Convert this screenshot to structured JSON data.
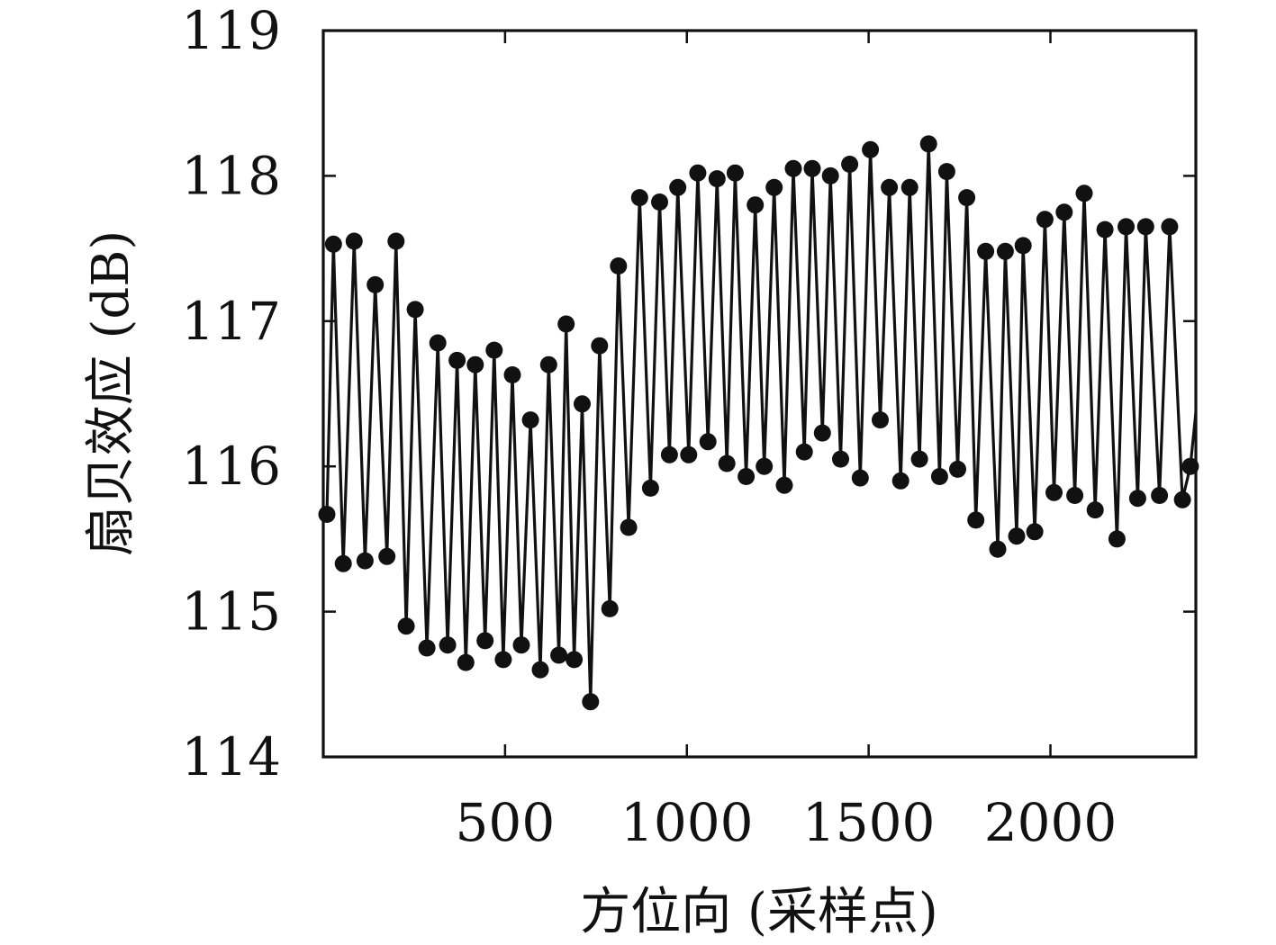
{
  "chart_data": {
    "type": "line",
    "title": "",
    "xlabel": "方位向 (采样点)",
    "ylabel": "扇贝效应 (dB)",
    "xlim": [
      0,
      2400
    ],
    "ylim": [
      114,
      119
    ],
    "xticks": [
      500,
      1000,
      1500,
      2000
    ],
    "yticks": [
      114,
      115,
      116,
      117,
      118,
      119
    ],
    "grid": false,
    "legend": false,
    "line_color": "#111111",
    "marker": "filled-circle",
    "x": [
      10,
      28,
      55,
      85,
      115,
      143,
      175,
      200,
      228,
      253,
      285,
      315,
      342,
      368,
      392,
      418,
      445,
      470,
      495,
      520,
      545,
      570,
      597,
      620,
      648,
      668,
      690,
      712,
      735,
      760,
      788,
      812,
      840,
      870,
      900,
      925,
      952,
      975,
      1005,
      1030,
      1058,
      1083,
      1110,
      1133,
      1163,
      1188,
      1213,
      1240,
      1268,
      1293,
      1323,
      1345,
      1373,
      1395,
      1423,
      1448,
      1477,
      1505,
      1532,
      1557,
      1588,
      1613,
      1640,
      1665,
      1695,
      1715,
      1745,
      1770,
      1795,
      1822,
      1855,
      1876,
      1907,
      1925,
      1957,
      1985,
      2010,
      2038,
      2067,
      2093,
      2123,
      2150,
      2183,
      2208,
      2240,
      2262,
      2300,
      2328,
      2363,
      2385
    ],
    "y": [
      115.67,
      117.53,
      115.33,
      117.55,
      115.35,
      117.25,
      115.38,
      117.55,
      114.9,
      117.08,
      114.75,
      116.85,
      114.77,
      116.73,
      114.65,
      116.7,
      114.8,
      116.8,
      114.67,
      116.63,
      114.77,
      116.32,
      114.6,
      116.7,
      114.7,
      116.98,
      114.67,
      116.43,
      114.38,
      116.83,
      115.02,
      117.38,
      115.58,
      117.85,
      115.85,
      117.82,
      116.08,
      117.92,
      116.08,
      118.02,
      116.17,
      117.98,
      116.02,
      118.02,
      115.93,
      117.8,
      116.0,
      117.92,
      115.87,
      118.05,
      116.1,
      118.05,
      116.23,
      118.0,
      116.05,
      118.08,
      115.92,
      118.18,
      116.32,
      117.92,
      115.9,
      117.92,
      116.05,
      118.22,
      115.93,
      118.03,
      115.98,
      117.85,
      115.63,
      117.48,
      115.43,
      117.48,
      115.52,
      117.52,
      115.55,
      117.7,
      115.82,
      117.75,
      115.8,
      117.88,
      115.7,
      117.63,
      115.5,
      117.65,
      115.78,
      117.65,
      115.8,
      117.65,
      115.77,
      116.0
    ]
  }
}
